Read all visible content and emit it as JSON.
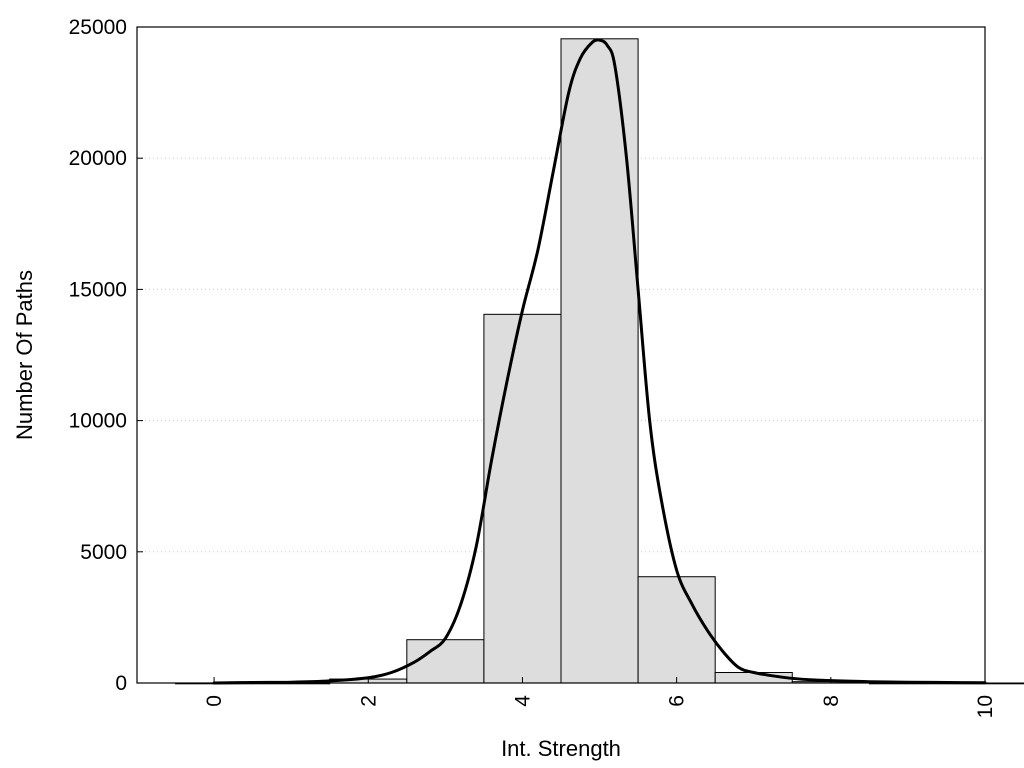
{
  "chart_data": {
    "type": "bar",
    "title": "",
    "xlabel": "Int. Strength",
    "ylabel": "Number Of Paths",
    "xlim": [
      -1,
      10
    ],
    "ylim": [
      0,
      25000
    ],
    "grid": true,
    "legend": "none",
    "x_ticks": [
      0,
      2,
      4,
      6,
      8,
      10
    ],
    "x_tick_labels": [
      "0",
      "2",
      "4",
      "6",
      "8",
      "10"
    ],
    "y_ticks": [
      0,
      5000,
      10000,
      15000,
      20000,
      25000
    ],
    "y_tick_labels": [
      "0",
      "5000",
      "10000",
      "15000",
      "20000",
      "25000"
    ],
    "bins": [
      {
        "x0": -0.5,
        "x1": 0.5,
        "value": 0
      },
      {
        "x0": 0.5,
        "x1": 1.5,
        "value": 0
      },
      {
        "x0": 1.5,
        "x1": 2.5,
        "value": 150
      },
      {
        "x0": 2.5,
        "x1": 3.5,
        "value": 1650
      },
      {
        "x0": 3.5,
        "x1": 4.5,
        "value": 14050
      },
      {
        "x0": 4.5,
        "x1": 5.5,
        "value": 24550
      },
      {
        "x0": 5.5,
        "x1": 6.5,
        "value": 4050
      },
      {
        "x0": 6.5,
        "x1": 7.5,
        "value": 400
      },
      {
        "x0": 7.5,
        "x1": 8.5,
        "value": 50
      },
      {
        "x0": 8.5,
        "x1": 9.5,
        "value": 0
      },
      {
        "x0": 9.5,
        "x1": 10.5,
        "value": 0
      }
    ],
    "series": [
      {
        "type": "line",
        "x": [
          0,
          0.5,
          1,
          1.5,
          2,
          2.3,
          2.6,
          2.8,
          3.0,
          3.2,
          3.4,
          3.6,
          3.8,
          4.0,
          4.2,
          4.4,
          4.6,
          4.75,
          4.9,
          5.0,
          5.1,
          5.2,
          5.35,
          5.5,
          5.65,
          5.8,
          6.0,
          6.2,
          6.4,
          6.6,
          6.8,
          7.0,
          7.3,
          7.6,
          8.0,
          8.5,
          9.0,
          9.5,
          10.0
        ],
        "y": [
          0,
          20,
          30,
          80,
          200,
          400,
          800,
          1200,
          1700,
          3000,
          5200,
          8500,
          11500,
          14200,
          16500,
          19500,
          22500,
          23800,
          24400,
          24500,
          24300,
          23500,
          20000,
          15000,
          10000,
          7000,
          4300,
          3000,
          2000,
          1200,
          600,
          400,
          250,
          150,
          90,
          50,
          30,
          20,
          10
        ],
        "color": "#000000"
      }
    ],
    "colors": {
      "bar_fill": "#dddddd",
      "bar_stroke": "#000000",
      "curve": "#000000",
      "grid": "#cccccc"
    }
  }
}
